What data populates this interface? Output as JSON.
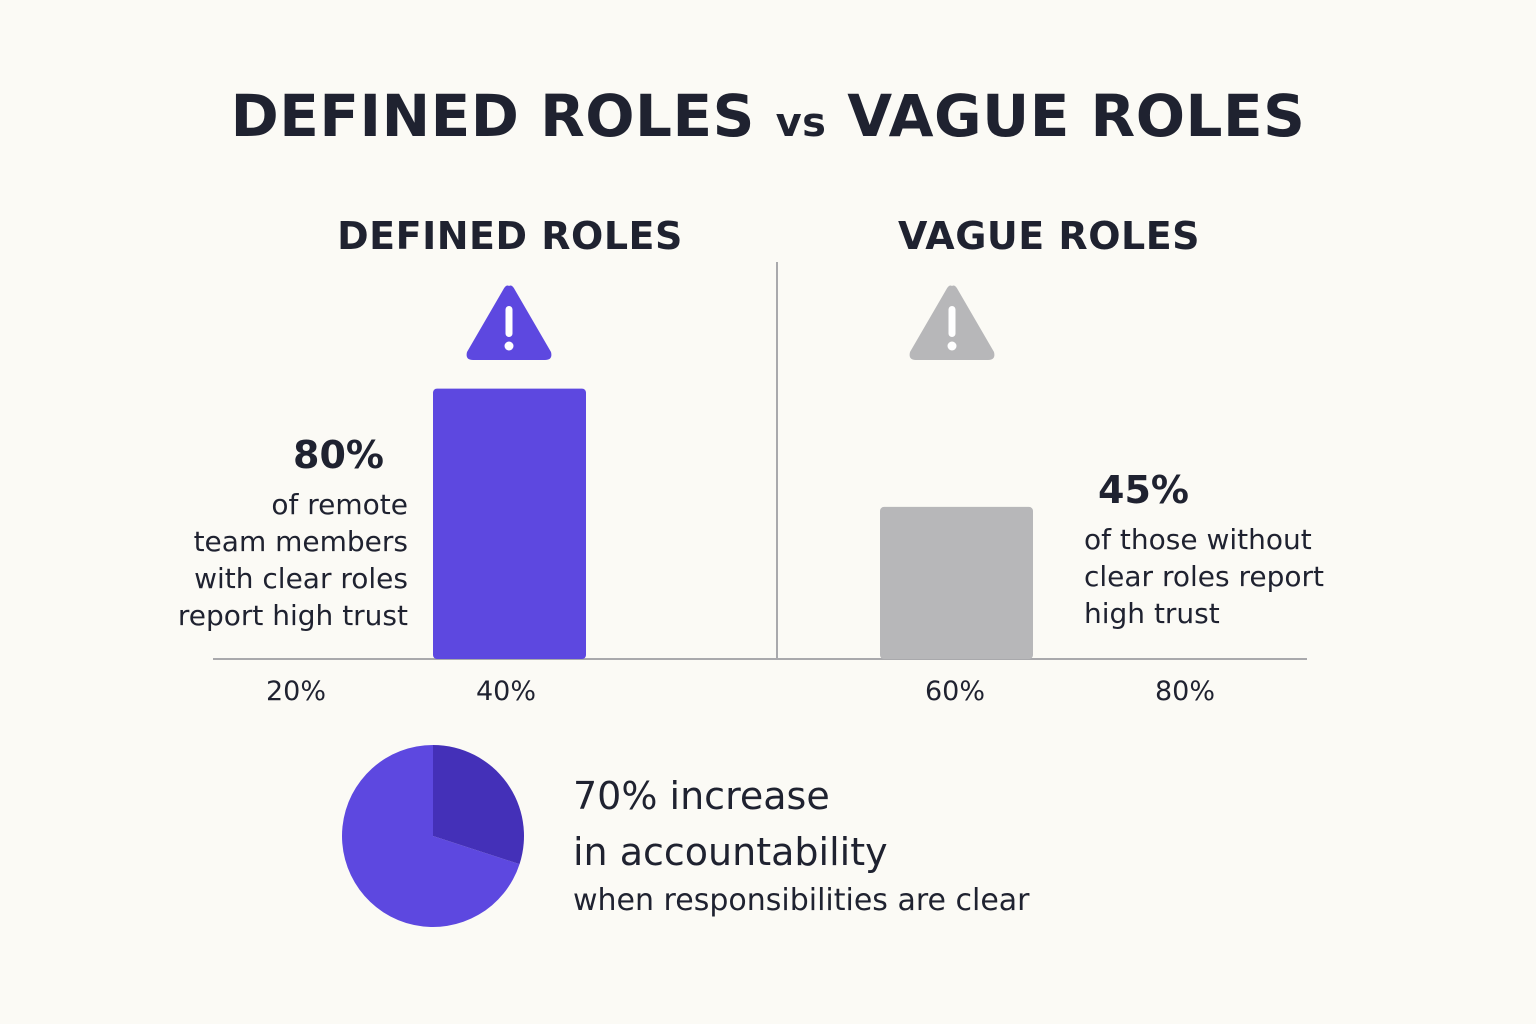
{
  "title": {
    "part1": "DEFINED ROLES",
    "vs": "vs",
    "part2": "VAGUE ROLES"
  },
  "panels": [
    {
      "heading": "DEFINED ROLES",
      "stat": "80%",
      "description": "of remote\nteam members\nwith clear roles\nreport high trust"
    },
    {
      "heading": "VAGUE ROLES",
      "stat": "45%",
      "description": "of those without\nclear roles report\nhigh trust"
    }
  ],
  "chart_data": [
    {
      "type": "bar",
      "x_ticks": [
        "20%",
        "40%",
        "60%",
        "80%"
      ],
      "series": [
        {
          "name": "DEFINED ROLES",
          "values": [
            80
          ],
          "color": "#5d48e0"
        },
        {
          "name": "VAGUE ROLES",
          "values": [
            45
          ],
          "color": "#b7b7b9"
        }
      ],
      "ylim": [
        0,
        100
      ],
      "grid": false
    },
    {
      "type": "pie",
      "values": [
        70,
        30
      ],
      "colors": [
        "#5d48e0",
        "#4430b8"
      ]
    }
  ],
  "pie_text": {
    "line1": "70% increase",
    "line2": "in accountability",
    "line3": "when responsibilities are clear"
  },
  "icons": {
    "left": {
      "name": "warning-icon",
      "color": "#5d48e0"
    },
    "right": {
      "name": "warning-icon",
      "color": "#b7b7b9"
    }
  },
  "colors": {
    "background": "#fbfaf5",
    "axis": "#a9a9ac",
    "text": "#1f2230"
  }
}
